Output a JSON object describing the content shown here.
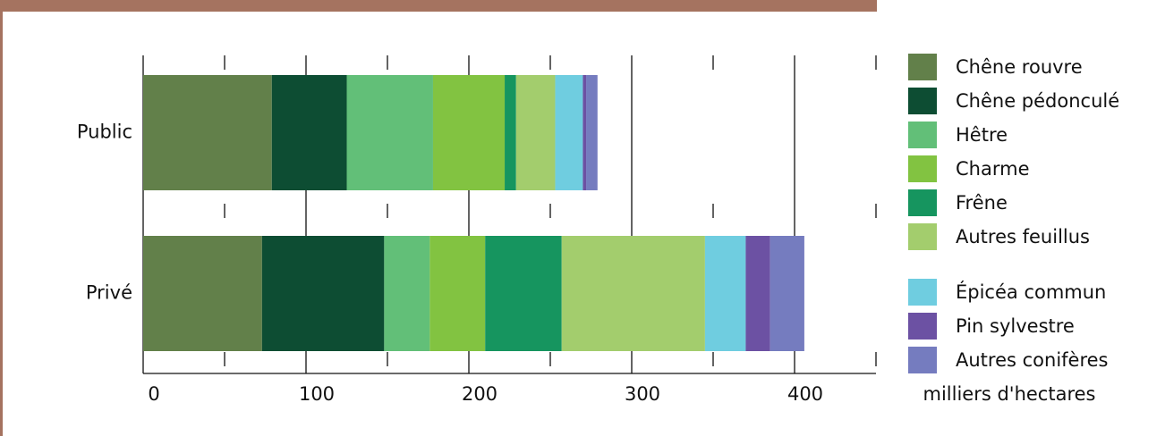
{
  "chart_data": {
    "type": "stacked_barh",
    "categories": [
      "Public",
      "Privé"
    ],
    "series": [
      {
        "name": "Chêne rouvre",
        "color": "#62804a",
        "values": [
          79,
          73
        ]
      },
      {
        "name": "Chêne pédonculé",
        "color": "#0d4d33",
        "values": [
          46,
          75
        ]
      },
      {
        "name": "Hêtre",
        "color": "#62bf78",
        "values": [
          53,
          28
        ]
      },
      {
        "name": "Charme",
        "color": "#82c341",
        "values": [
          44,
          34
        ]
      },
      {
        "name": "Frêne",
        "color": "#16955f",
        "values": [
          7,
          47
        ]
      },
      {
        "name": "Autres feuillus",
        "color": "#a3cd6d",
        "values": [
          24,
          88
        ]
      },
      {
        "name": "Épicéa commun",
        "color": "#6fcde0",
        "values": [
          17,
          25
        ]
      },
      {
        "name": "Pin sylvestre",
        "color": "#6c51a3",
        "values": [
          2,
          15
        ]
      },
      {
        "name": "Autres conifères",
        "color": "#757cbf",
        "values": [
          7,
          21
        ]
      }
    ],
    "xlabel": "milliers d'hectares",
    "xlim": [
      0,
      450
    ],
    "xticks": [
      0,
      100,
      200,
      300,
      400
    ],
    "minor_xticks": [
      50,
      150,
      250,
      350,
      450
    ],
    "grid": true
  }
}
